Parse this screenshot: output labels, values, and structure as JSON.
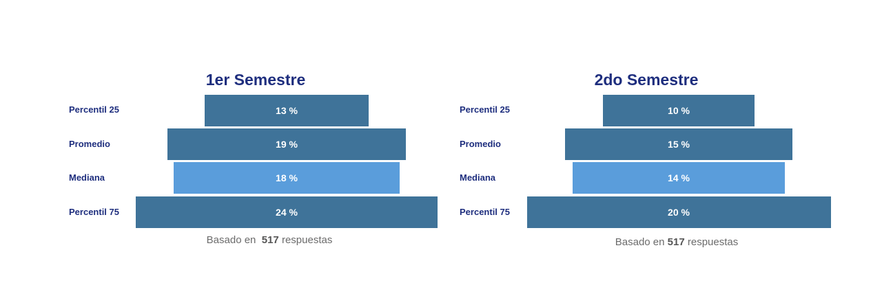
{
  "colors": {
    "bar_dark": "#3f7399",
    "bar_light": "#5a9ddb",
    "label": "#1e2e7e",
    "footnote": "#6b6b6b"
  },
  "chart_data": [
    {
      "type": "bar",
      "title": "1er Semestre",
      "categories": [
        "Percentil 25",
        "Promedio",
        "Mediana",
        "Percentil 75"
      ],
      "values": [
        13,
        19,
        18,
        24
      ],
      "value_labels": [
        "13 %",
        "19 %",
        "18 %",
        "24 %"
      ],
      "highlight": [
        "dark",
        "dark",
        "light",
        "dark"
      ],
      "footnote": {
        "prefix": "Basado en",
        "count": "517",
        "suffix": "respuestas"
      }
    },
    {
      "type": "bar",
      "title": "2do Semestre",
      "categories": [
        "Percentil 25",
        "Promedio",
        "Mediana",
        "Percentil 75"
      ],
      "values": [
        10,
        15,
        14,
        20
      ],
      "value_labels": [
        "10 %",
        "15 %",
        "14 %",
        "20 %"
      ],
      "highlight": [
        "dark",
        "dark",
        "light",
        "dark"
      ],
      "footnote": {
        "prefix": "Basado en",
        "count": "517",
        "suffix": "respuestas"
      }
    }
  ]
}
